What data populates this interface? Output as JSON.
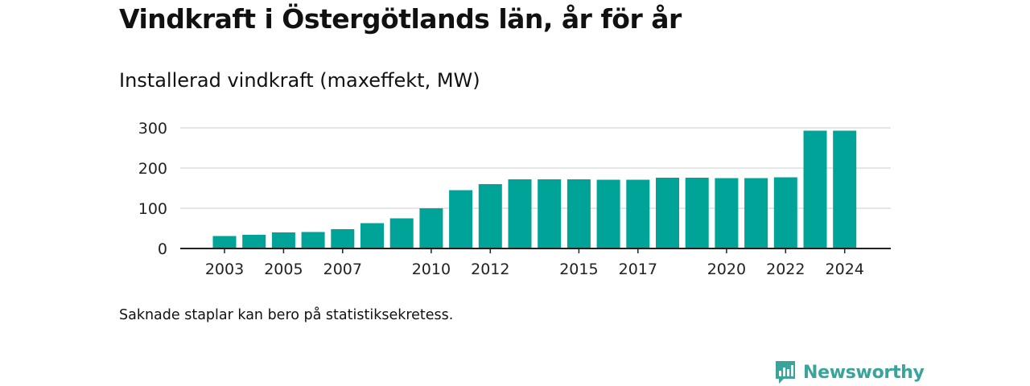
{
  "title": "Vindkraft i Östergötlands län, år för år",
  "subtitle": "Installerad vindkraft (maxeffekt, MW)",
  "footnote": "Saknade staplar kan bero på statistiksekretess.",
  "brand": {
    "name": "Newsworthy",
    "icon": "newsworthy-logo-icon"
  },
  "colors": {
    "bar": "#00a398",
    "grid": "#d6d6d6",
    "axis": "#222222",
    "brand": "#3aa39a"
  },
  "chart_data": {
    "type": "bar",
    "x": [
      2003,
      2004,
      2005,
      2006,
      2007,
      2008,
      2009,
      2010,
      2011,
      2012,
      2013,
      2014,
      2015,
      2016,
      2017,
      2018,
      2019,
      2020,
      2021,
      2022,
      2023,
      2024
    ],
    "values": [
      31,
      34,
      40,
      41,
      48,
      63,
      75,
      100,
      145,
      160,
      172,
      172,
      172,
      171,
      171,
      176,
      176,
      175,
      175,
      177,
      293,
      293
    ],
    "x_tick_labels": [
      "2003",
      "2005",
      "2007",
      "2010",
      "2012",
      "2015",
      "2017",
      "2020",
      "2022",
      "2024"
    ],
    "y_ticks": [
      0,
      100,
      200,
      300
    ],
    "ylim": [
      0,
      300
    ],
    "grid": true,
    "legend": false,
    "xlabel": "",
    "ylabel": ""
  }
}
